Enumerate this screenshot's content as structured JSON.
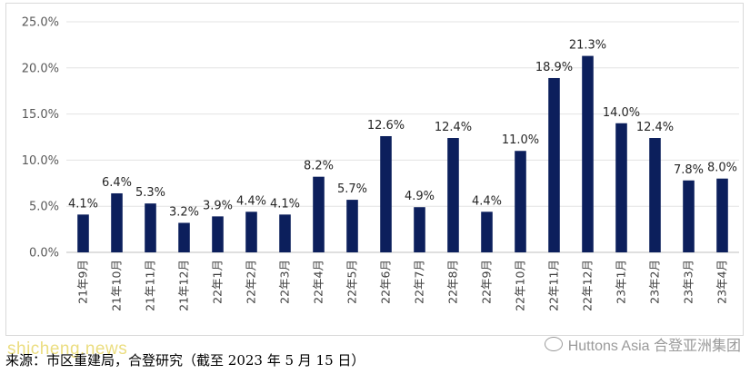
{
  "chart_data": {
    "type": "bar",
    "categories": [
      "21年9月",
      "21年10月",
      "21年11月",
      "21年12月",
      "22年1月",
      "22年2月",
      "22年3月",
      "22年4月",
      "22年5月",
      "22年6月",
      "22年7月",
      "22年8月",
      "22年9月",
      "22年10月",
      "22年11月",
      "22年12月",
      "23年1月",
      "23年2月",
      "23年3月",
      "23年4月"
    ],
    "values": [
      4.1,
      6.4,
      5.3,
      3.2,
      3.9,
      4.4,
      4.1,
      8.2,
      5.7,
      12.6,
      4.9,
      12.4,
      4.4,
      11.0,
      18.9,
      21.3,
      14.0,
      12.4,
      7.8,
      8.0
    ],
    "value_labels": [
      "4.1%",
      "6.4%",
      "5.3%",
      "3.2%",
      "3.9%",
      "4.4%",
      "4.1%",
      "8.2%",
      "5.7%",
      "12.6%",
      "4.9%",
      "12.4%",
      "4.4%",
      "11.0%",
      "18.9%",
      "21.3%",
      "14.0%",
      "12.4%",
      "7.8%",
      "8.0%"
    ],
    "ylim": [
      0,
      25
    ],
    "y_ticks": [
      0,
      5,
      10,
      15,
      20,
      25
    ],
    "y_tick_labels": [
      "0.0%",
      "5.0%",
      "10.0%",
      "15.0%",
      "20.0%",
      "25.0%"
    ],
    "grid": true,
    "bar_color": "#0c1f5c",
    "title": "",
    "xlabel": "",
    "ylabel": ""
  },
  "watermark": "shicheng.news",
  "brand": "Huttons Asia 合登亚洲集团",
  "source_note": "来源：市区重建局，合登研究（截至 2023 年 5 月 15 日）"
}
